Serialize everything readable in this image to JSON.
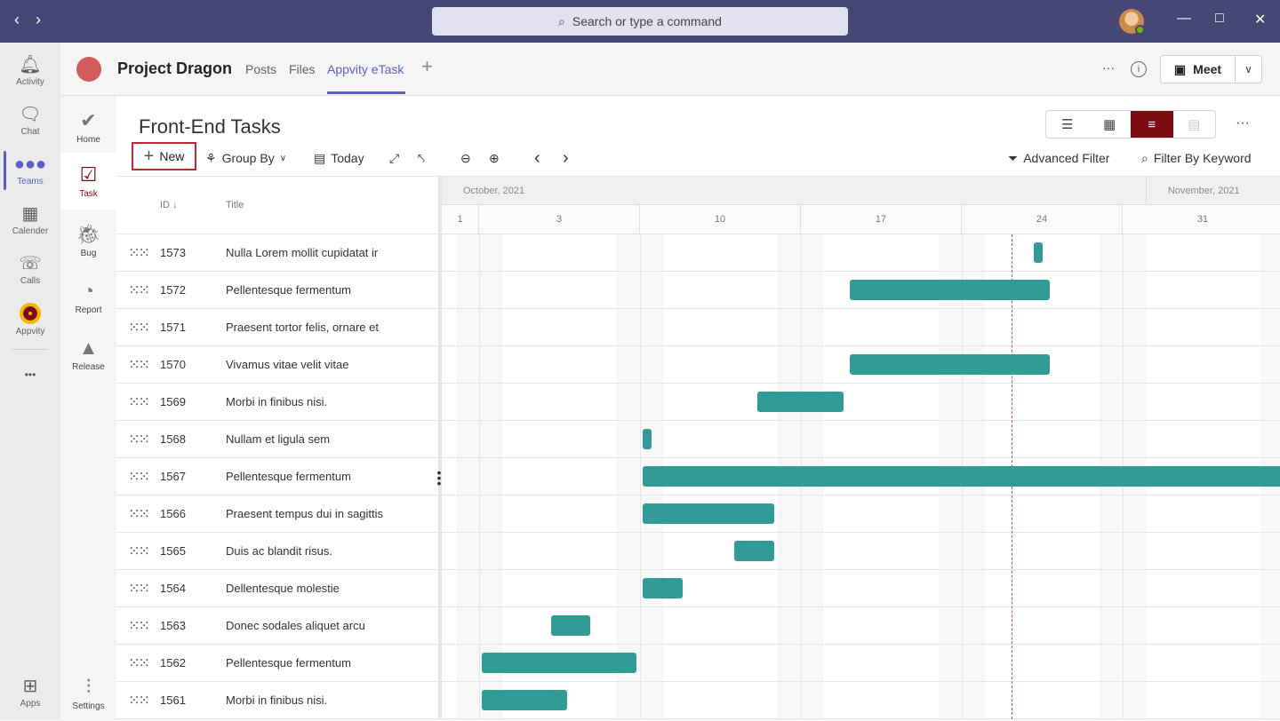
{
  "titlebar": {
    "search_placeholder": "Search or type a command",
    "back_icon": "chevron-left",
    "forward_icon": "chevron-right"
  },
  "rail": {
    "items": [
      {
        "label": "Activity",
        "icon": "bell"
      },
      {
        "label": "Chat",
        "icon": "chat"
      },
      {
        "label": "Teams",
        "icon": "teams",
        "active": true
      },
      {
        "label": "Calender",
        "icon": "calendar"
      },
      {
        "label": "Calls",
        "icon": "phone"
      },
      {
        "label": "Appvity",
        "icon": "appvity-logo"
      }
    ],
    "more": "•••",
    "apps": "Apps"
  },
  "channel": {
    "team_title": "Project Dragon",
    "tabs": [
      {
        "label": "Posts"
      },
      {
        "label": "Files"
      },
      {
        "label": "Appvity eTask",
        "active": true
      }
    ],
    "add_tab": "+",
    "more": "···",
    "meet_label": "Meet"
  },
  "subnav": {
    "items": [
      {
        "label": "Home",
        "icon": "checks"
      },
      {
        "label": "Task",
        "icon": "checkbox",
        "active": true
      },
      {
        "label": "Bug",
        "icon": "bug"
      },
      {
        "label": "Report",
        "icon": "pie-chart"
      },
      {
        "label": "Release",
        "icon": "rocket"
      }
    ],
    "settings": "Settings"
  },
  "page": {
    "title": "Front-End Tasks"
  },
  "toolbar": {
    "new": "New",
    "group_by": "Group By",
    "today": "Today",
    "advanced_filter": "Advanced Filter",
    "filter_keyword": "Filter By Keyword",
    "more": "···"
  },
  "views": {
    "active": "gantt",
    "items": [
      "list",
      "board",
      "gantt",
      "calendar"
    ]
  },
  "grid": {
    "col_id": "ID",
    "col_title": "Title",
    "sort": "descending",
    "rows": [
      {
        "id": "1573",
        "title": "Nulla Lorem mollit cupidatat ir"
      },
      {
        "id": "1572",
        "title": "Pellentesque fermentum"
      },
      {
        "id": "1571",
        "title": "Praesent tortor felis, ornare et"
      },
      {
        "id": "1570",
        "title": "Vivamus vitae velit vitae"
      },
      {
        "id": "1569",
        "title": "Morbi in finibus nisi."
      },
      {
        "id": "1568",
        "title": "Nullam et ligula sem"
      },
      {
        "id": "1567",
        "title": "Pellentesque fermentum"
      },
      {
        "id": "1566",
        "title": "Praesent tempus dui in sagittis"
      },
      {
        "id": "1565",
        "title": "Duis ac blandit risus."
      },
      {
        "id": "1564",
        "title": "Dellentesque molestie"
      },
      {
        "id": "1563",
        "title": "Donec sodales aliquet arcu"
      },
      {
        "id": "1562",
        "title": "Pellentesque fermentum"
      },
      {
        "id": "1561",
        "title": "Morbi in finibus nisi."
      }
    ]
  },
  "gantt": {
    "months": [
      "October, 2021",
      "November, 2021"
    ],
    "weeks": [
      "1",
      "3",
      "10",
      "17",
      "24",
      "31"
    ],
    "today": "2021-10-26",
    "bar_color": "#319b97",
    "bars": [
      {
        "id": "1573",
        "start": "2021-10-27",
        "end": "2021-10-27"
      },
      {
        "id": "1572",
        "start": "2021-10-19",
        "end": "2021-10-27"
      },
      {
        "id": "1571",
        "start": null,
        "end": null
      },
      {
        "id": "1570",
        "start": "2021-10-19",
        "end": "2021-10-27"
      },
      {
        "id": "1569",
        "start": "2021-10-15",
        "end": "2021-10-18"
      },
      {
        "id": "1568",
        "start": "2021-10-10",
        "end": "2021-10-10"
      },
      {
        "id": "1567",
        "start": "2021-10-10",
        "end": "2021-11-30"
      },
      {
        "id": "1566",
        "start": "2021-10-10",
        "end": "2021-10-15"
      },
      {
        "id": "1565",
        "start": "2021-10-14",
        "end": "2021-10-15"
      },
      {
        "id": "1564",
        "start": "2021-10-10",
        "end": "2021-10-11"
      },
      {
        "id": "1563",
        "start": "2021-10-06",
        "end": "2021-10-07"
      },
      {
        "id": "1562",
        "start": "2021-10-03",
        "end": "2021-10-09"
      },
      {
        "id": "1561",
        "start": "2021-10-03",
        "end": "2021-10-06"
      }
    ]
  }
}
